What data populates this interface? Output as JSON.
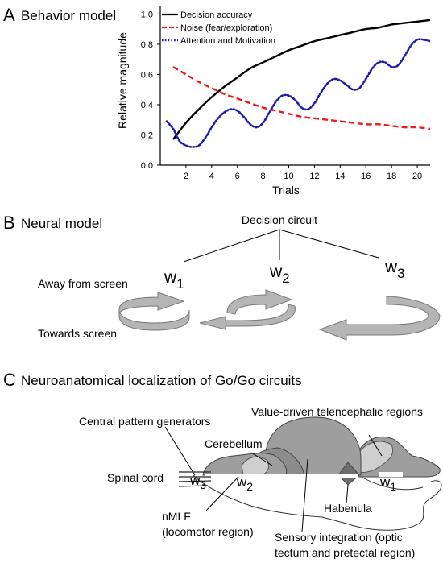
{
  "panels": {
    "a": {
      "letter": "A",
      "title": "Behavior model",
      "chart_data": {
        "type": "line",
        "xlabel": "Trials",
        "ylabel": "Relative magnitude",
        "xlim": [
          0,
          21
        ],
        "ylim": [
          0,
          1.05
        ],
        "xticks": [
          2,
          4,
          6,
          8,
          10,
          12,
          14,
          16,
          18,
          20
        ],
        "yticks": [
          0.0,
          0.2,
          0.4,
          0.6,
          0.8,
          1.0
        ],
        "ytick_labels": [
          "0.0",
          "0.2",
          "0.4",
          "0.6",
          "0.8",
          "1.0"
        ],
        "legend_position": "top-left",
        "series": [
          {
            "name": "Decision accuracy",
            "color": "#000000",
            "style": "solid",
            "x": [
              1,
              2,
              3,
              4,
              5,
              6,
              7,
              8,
              9,
              10,
              11,
              12,
              13,
              14,
              15,
              16,
              17,
              18,
              19,
              20,
              21
            ],
            "y": [
              0.17,
              0.28,
              0.37,
              0.45,
              0.52,
              0.58,
              0.64,
              0.68,
              0.72,
              0.76,
              0.79,
              0.82,
              0.84,
              0.86,
              0.88,
              0.9,
              0.91,
              0.93,
              0.94,
              0.95,
              0.96
            ]
          },
          {
            "name": "Noise (fear/exploration)",
            "color": "#ee1c1c",
            "style": "dashed",
            "x": [
              1,
              2,
              3,
              4,
              5,
              6,
              7,
              8,
              9,
              10,
              11,
              12,
              13,
              14,
              15,
              16,
              17,
              18,
              19,
              20,
              21
            ],
            "y": [
              0.65,
              0.6,
              0.55,
              0.51,
              0.47,
              0.44,
              0.41,
              0.38,
              0.36,
              0.34,
              0.32,
              0.31,
              0.3,
              0.29,
              0.28,
              0.27,
              0.27,
              0.26,
              0.25,
              0.25,
              0.24
            ]
          },
          {
            "name": "Attention and Motivation",
            "color": "#1c1ca8",
            "style": "dotted",
            "x": [
              0.5,
              1,
              1.5,
              2,
              2.5,
              3,
              3.5,
              4,
              4.5,
              5,
              5.5,
              6,
              6.5,
              7,
              7.5,
              8,
              8.5,
              9,
              9.5,
              10,
              10.5,
              11,
              11.5,
              12,
              12.5,
              13,
              13.5,
              14,
              14.5,
              15,
              15.5,
              16,
              16.5,
              17,
              17.5,
              18,
              18.5,
              19,
              19.5,
              20,
              20.5,
              21
            ],
            "y": [
              0.29,
              0.24,
              0.16,
              0.13,
              0.12,
              0.13,
              0.18,
              0.25,
              0.31,
              0.35,
              0.37,
              0.36,
              0.32,
              0.27,
              0.25,
              0.28,
              0.35,
              0.42,
              0.46,
              0.46,
              0.43,
              0.38,
              0.37,
              0.41,
              0.48,
              0.54,
              0.57,
              0.56,
              0.53,
              0.5,
              0.51,
              0.57,
              0.64,
              0.68,
              0.68,
              0.65,
              0.66,
              0.72,
              0.79,
              0.83,
              0.83,
              0.82
            ]
          }
        ]
      }
    },
    "b": {
      "letter": "B",
      "title": "Neural model",
      "decision_circuit": "Decision circuit",
      "weight_symbol": "w",
      "weights": [
        "1",
        "2",
        "3"
      ],
      "away_label": "Away from screen",
      "towards_label": "Towards screen",
      "arrow_color": "#b5b5b5"
    },
    "c": {
      "letter": "C",
      "title": "Neuroanatomical localization of Go/Go circuits",
      "labels": {
        "central_pattern_generators": "Central pattern generators",
        "value_driven": "Value-driven telencephalic regions",
        "cerebellum": "Cerebellum",
        "spinal_cord": "Spinal cord",
        "habenula": "Habenula",
        "nmlf_line1": "nMLF",
        "nmlf_line2": "(locomotor region)",
        "sensory_line1": "Sensory integration (optic",
        "sensory_line2": "tectum and pretectal region)"
      },
      "weight_symbol": "w",
      "weights": [
        "3",
        "2",
        "1"
      ],
      "colors": {
        "tectum": "#9e9e9e",
        "tectum_dark": "#8c8c8c",
        "telencephalon": "#cfcfcf",
        "habenula": "#6e6e6e"
      }
    }
  }
}
